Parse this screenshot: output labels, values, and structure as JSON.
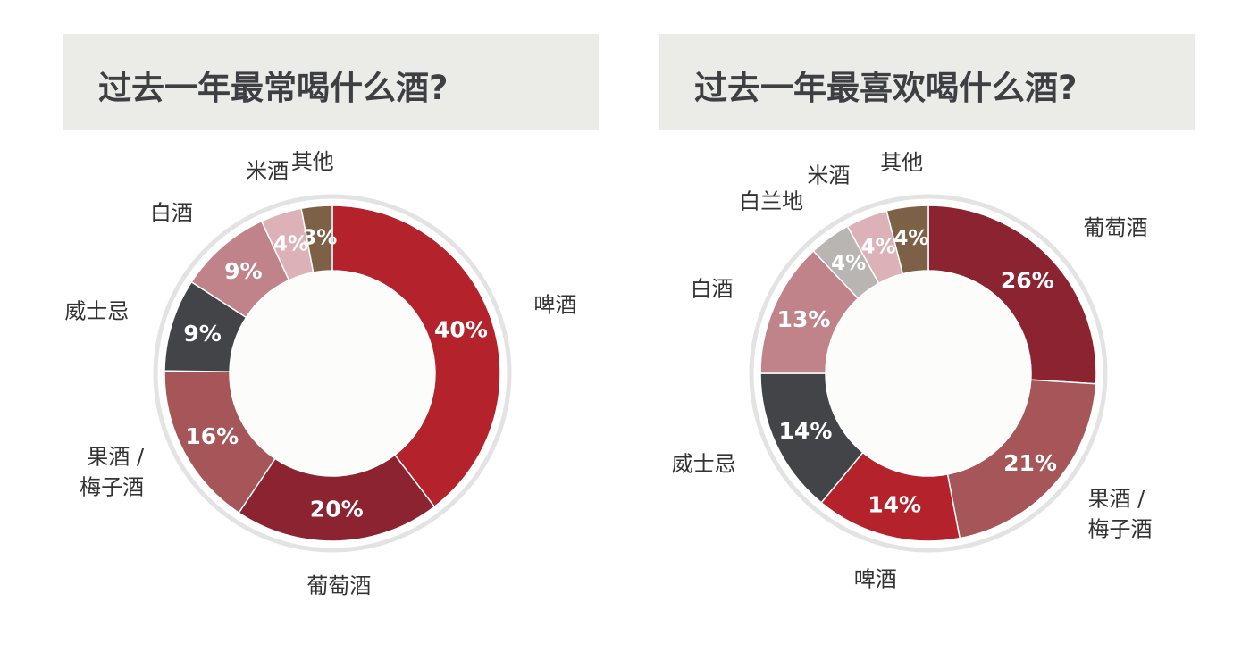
{
  "chart_data": [
    {
      "type": "pie",
      "title": "过去一年最常喝什么酒?",
      "slices": [
        {
          "label": "啤酒",
          "value": 40,
          "display": "40%",
          "color": "#b4222b"
        },
        {
          "label": "葡萄酒",
          "value": 20,
          "display": "20%",
          "color": "#8b2430"
        },
        {
          "label": "果酒 /\n梅子酒",
          "value": 16,
          "display": "16%",
          "color": "#a65559"
        },
        {
          "label": "威士忌",
          "value": 9,
          "display": "9%",
          "color": "#424448"
        },
        {
          "label": "白酒",
          "value": 9,
          "display": "9%",
          "color": "#c0838a"
        },
        {
          "label": "米酒",
          "value": 4,
          "display": "4%",
          "color": "#dcb2b8"
        },
        {
          "label": "其他",
          "value": 3,
          "display": "3%",
          "color": "#7d6147"
        }
      ]
    },
    {
      "type": "pie",
      "title": "过去一年最喜欢喝什么酒?",
      "slices": [
        {
          "label": "葡萄酒",
          "value": 26,
          "display": "26%",
          "color": "#8b2430"
        },
        {
          "label": "果酒 /\n梅子酒",
          "value": 21,
          "display": "21%",
          "color": "#a65559"
        },
        {
          "label": "啤酒",
          "value": 14,
          "display": "14%",
          "color": "#b4222b"
        },
        {
          "label": "威士忌",
          "value": 14,
          "display": "14%",
          "color": "#424448"
        },
        {
          "label": "白酒",
          "value": 13,
          "display": "13%",
          "color": "#c0838a"
        },
        {
          "label": "白兰地",
          "value": 4,
          "display": "4%",
          "color": "#b9b5b3"
        },
        {
          "label": "米酒",
          "value": 4,
          "display": "4%",
          "color": "#dcb2b8"
        },
        {
          "label": "其他",
          "value": 4,
          "display": "4%",
          "color": "#7d6147"
        }
      ]
    }
  ]
}
